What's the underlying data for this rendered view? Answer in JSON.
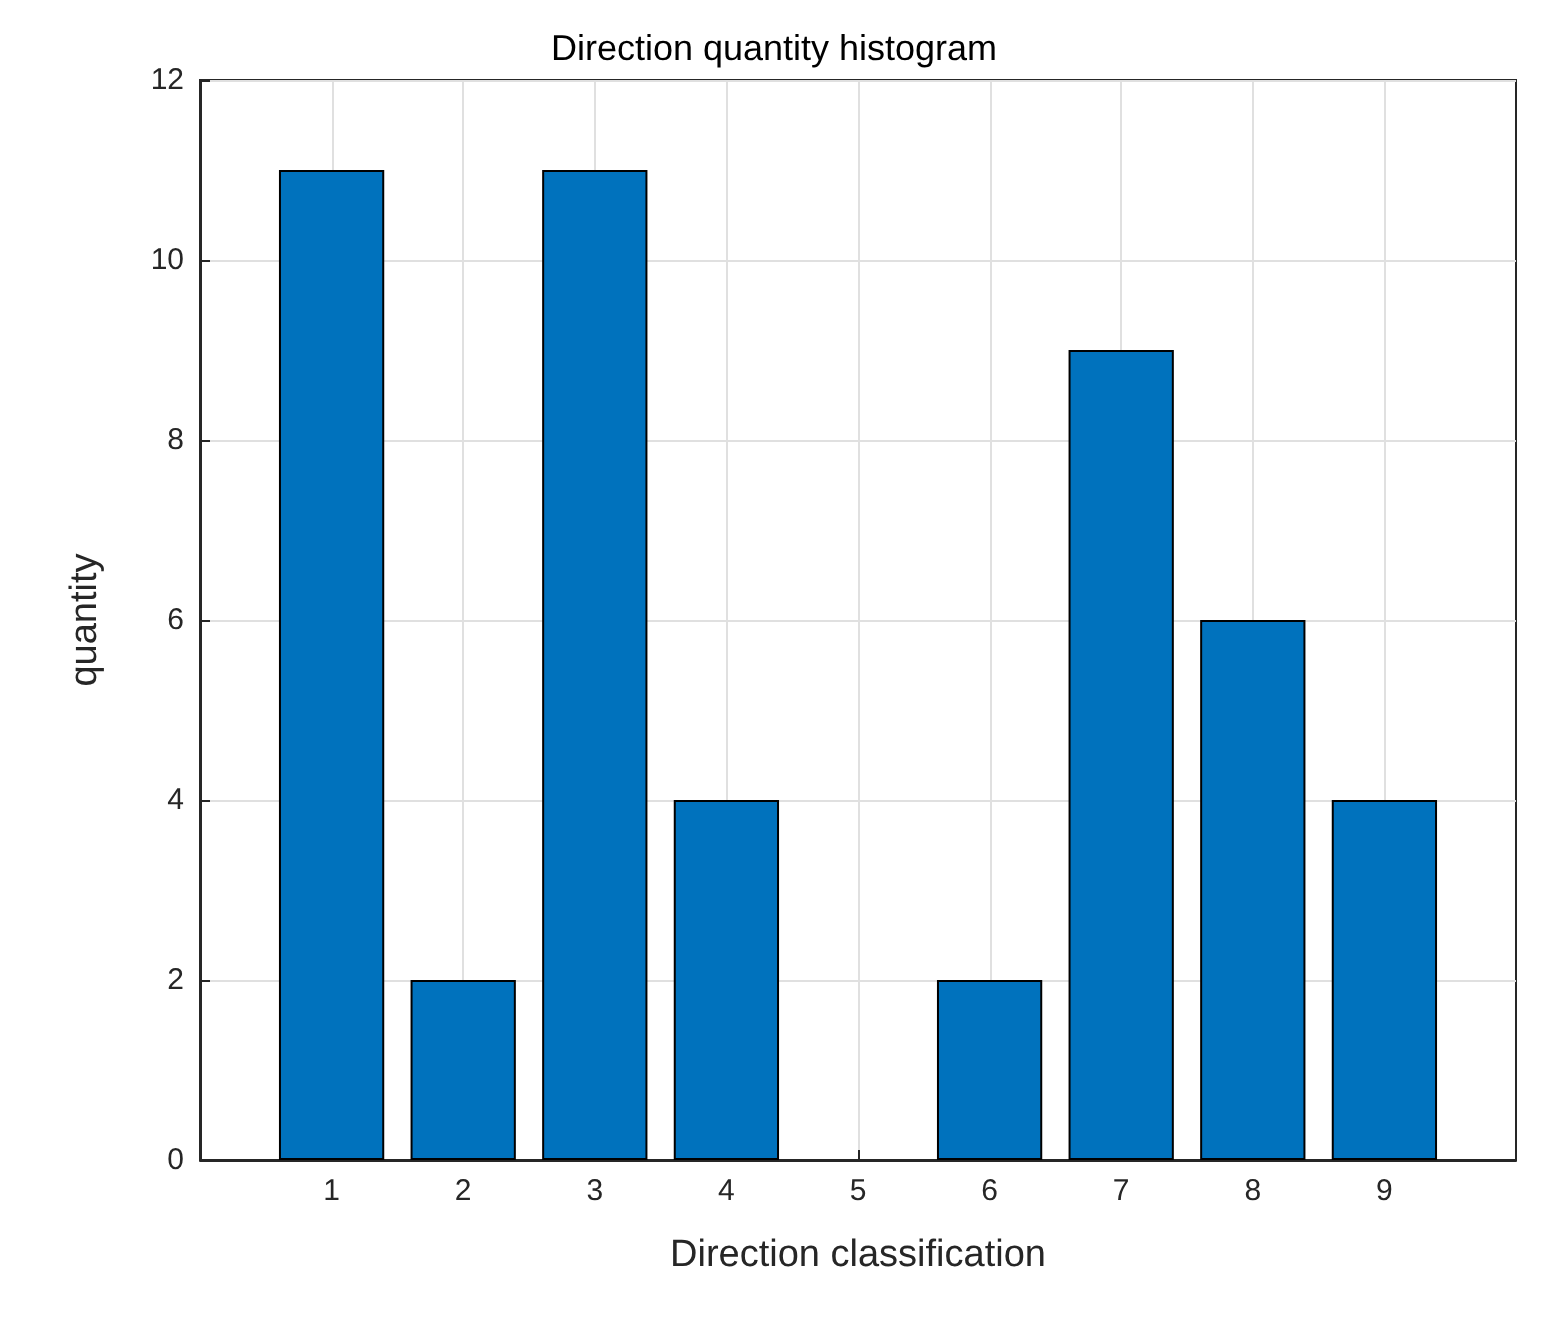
{
  "chart_data": {
    "type": "bar",
    "title": "Direction quantity histogram",
    "xlabel": "Direction classification",
    "ylabel": "quantity",
    "x": [
      1,
      2,
      3,
      4,
      5,
      6,
      7,
      8,
      9
    ],
    "values": [
      11,
      2,
      11,
      4,
      0,
      2,
      9,
      6,
      4
    ],
    "color": "#0072bd",
    "xlim": [
      0,
      10
    ],
    "xticks": [
      1,
      2,
      3,
      4,
      5,
      6,
      7,
      8,
      9
    ],
    "ylim": [
      0,
      12
    ],
    "yticks": [
      0,
      2,
      4,
      6,
      8,
      10,
      12
    ],
    "grid": true
  }
}
